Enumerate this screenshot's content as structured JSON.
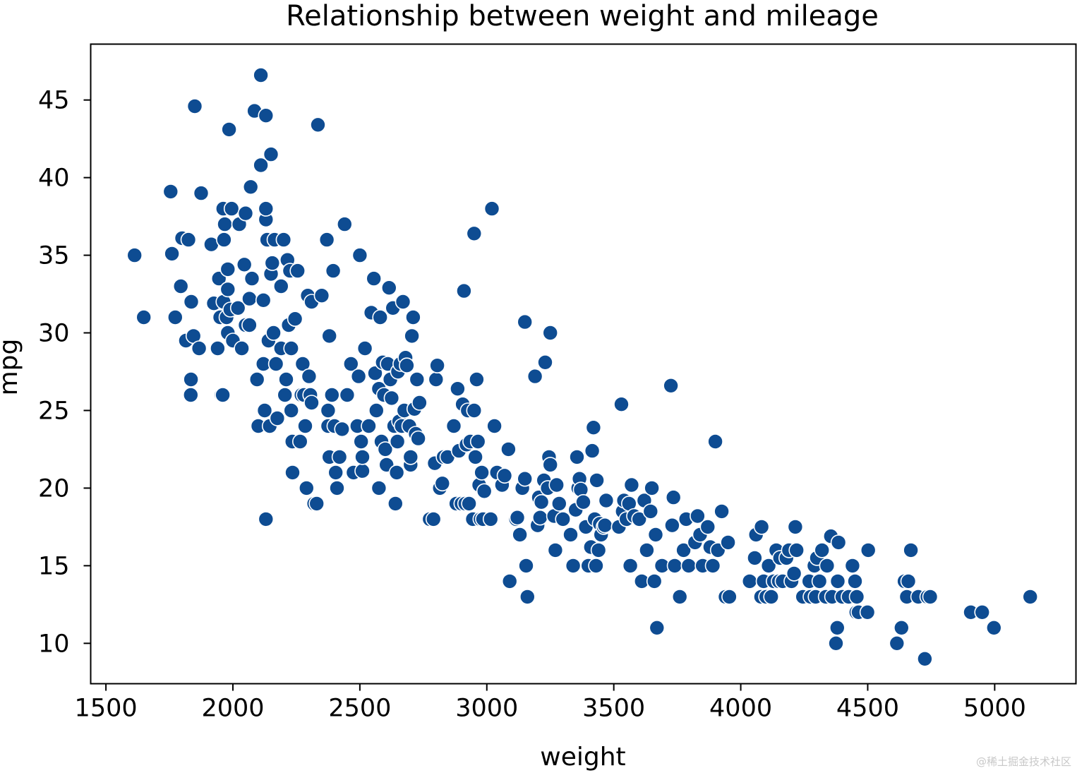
{
  "colors": {
    "marker_fill": "#0e4c92",
    "marker_edge": "#ffffff",
    "axis": "#000000",
    "background": "#ffffff"
  },
  "watermark": "@稀土掘金技术社区",
  "chart_data": {
    "type": "scatter",
    "title": "Relationship between weight and mileage",
    "xlabel": "weight",
    "ylabel": "mpg",
    "xlim": [
      1440,
      5320
    ],
    "ylim": [
      7.4,
      48.6
    ],
    "xticks": [
      1500,
      2000,
      2500,
      3000,
      3500,
      4000,
      4500,
      5000
    ],
    "yticks": [
      10,
      15,
      20,
      25,
      30,
      35,
      40,
      45
    ],
    "grid": false,
    "legend": "none",
    "points": [
      [
        1613,
        35
      ],
      [
        1649,
        31
      ],
      [
        1755,
        39.1
      ],
      [
        1760,
        35.1
      ],
      [
        1773,
        31
      ],
      [
        1795,
        33
      ],
      [
        1800,
        36.1
      ],
      [
        1815,
        29.5
      ],
      [
        1825,
        36
      ],
      [
        1834,
        26
      ],
      [
        1835,
        27
      ],
      [
        1836,
        32
      ],
      [
        1845,
        29.8
      ],
      [
        1850,
        44.6
      ],
      [
        1867,
        29
      ],
      [
        1875,
        39
      ],
      [
        1915,
        35.7
      ],
      [
        1925,
        31.9
      ],
      [
        1940,
        29
      ],
      [
        1945,
        33.5
      ],
      [
        1950,
        31
      ],
      [
        1955,
        26
      ],
      [
        1960,
        26
      ],
      [
        1962,
        38
      ],
      [
        1963,
        32
      ],
      [
        1965,
        36
      ],
      [
        1968,
        37
      ],
      [
        1975,
        31
      ],
      [
        1980,
        30
      ],
      [
        1980,
        34.1
      ],
      [
        1980,
        32.8
      ],
      [
        1985,
        43.1
      ],
      [
        1990,
        31.5
      ],
      [
        1995,
        38
      ],
      [
        2000,
        29.5
      ],
      [
        2020,
        31.6
      ],
      [
        2025,
        37
      ],
      [
        2035,
        29
      ],
      [
        2045,
        34.4
      ],
      [
        2050,
        30.5
      ],
      [
        2050,
        37.7
      ],
      [
        2065,
        32.2
      ],
      [
        2065,
        30.5
      ],
      [
        2070,
        39.4
      ],
      [
        2075,
        33.5
      ],
      [
        2085,
        44.3
      ],
      [
        2095,
        27
      ],
      [
        2100,
        24
      ],
      [
        2110,
        40.8
      ],
      [
        2110,
        46.6
      ],
      [
        2120,
        32.1
      ],
      [
        2120,
        28
      ],
      [
        2125,
        25
      ],
      [
        2130,
        18
      ],
      [
        2130,
        37.3
      ],
      [
        2130,
        38
      ],
      [
        2130,
        44
      ],
      [
        2135,
        36
      ],
      [
        2140,
        29.5
      ],
      [
        2145,
        24
      ],
      [
        2150,
        33.8
      ],
      [
        2150,
        41.5
      ],
      [
        2155,
        34.5
      ],
      [
        2160,
        30
      ],
      [
        2164,
        36
      ],
      [
        2170,
        28
      ],
      [
        2175,
        24.5
      ],
      [
        2190,
        29
      ],
      [
        2190,
        33
      ],
      [
        2200,
        36
      ],
      [
        2205,
        26
      ],
      [
        2210,
        27
      ],
      [
        2215,
        34.7
      ],
      [
        2220,
        30.5
      ],
      [
        2225,
        34
      ],
      [
        2230,
        29
      ],
      [
        2230,
        25
      ],
      [
        2234,
        23
      ],
      [
        2235,
        21
      ],
      [
        2245,
        30.9
      ],
      [
        2255,
        34
      ],
      [
        2265,
        23
      ],
      [
        2270,
        26
      ],
      [
        2275,
        28
      ],
      [
        2280,
        26
      ],
      [
        2285,
        24
      ],
      [
        2290,
        20
      ],
      [
        2295,
        32.4
      ],
      [
        2300,
        27.2
      ],
      [
        2305,
        26
      ],
      [
        2310,
        25.5
      ],
      [
        2310,
        32
      ],
      [
        2320,
        19
      ],
      [
        2330,
        19
      ],
      [
        2335,
        43.4
      ],
      [
        2350,
        32.4
      ],
      [
        2370,
        36
      ],
      [
        2375,
        24
      ],
      [
        2375,
        25
      ],
      [
        2380,
        22
      ],
      [
        2380,
        29.8
      ],
      [
        2390,
        26
      ],
      [
        2395,
        34
      ],
      [
        2400,
        24
      ],
      [
        2405,
        21
      ],
      [
        2410,
        20
      ],
      [
        2420,
        22
      ],
      [
        2430,
        23.8
      ],
      [
        2440,
        37
      ],
      [
        2450,
        26
      ],
      [
        2465,
        28
      ],
      [
        2475,
        21
      ],
      [
        2490,
        24
      ],
      [
        2495,
        27.2
      ],
      [
        2500,
        35
      ],
      [
        2505,
        23
      ],
      [
        2510,
        21.1
      ],
      [
        2510,
        22
      ],
      [
        2520,
        29
      ],
      [
        2535,
        24
      ],
      [
        2545,
        31.3
      ],
      [
        2555,
        33.5
      ],
      [
        2560,
        27.4
      ],
      [
        2565,
        25
      ],
      [
        2575,
        20
      ],
      [
        2575,
        26.4
      ],
      [
        2580,
        31
      ],
      [
        2585,
        23
      ],
      [
        2590,
        28.1
      ],
      [
        2595,
        26
      ],
      [
        2600,
        22.5
      ],
      [
        2605,
        21.5
      ],
      [
        2610,
        28
      ],
      [
        2615,
        32.9
      ],
      [
        2620,
        27
      ],
      [
        2625,
        25.8
      ],
      [
        2630,
        31.6
      ],
      [
        2635,
        24
      ],
      [
        2640,
        19
      ],
      [
        2645,
        21
      ],
      [
        2648,
        23
      ],
      [
        2650,
        27.5
      ],
      [
        2655,
        24.3
      ],
      [
        2660,
        28
      ],
      [
        2665,
        24
      ],
      [
        2670,
        32
      ],
      [
        2675,
        25
      ],
      [
        2680,
        28.4
      ],
      [
        2685,
        27.9
      ],
      [
        2695,
        24
      ],
      [
        2700,
        21.5
      ],
      [
        2700,
        22
      ],
      [
        2705,
        29.8
      ],
      [
        2710,
        31
      ],
      [
        2715,
        25.1
      ],
      [
        2720,
        23.5
      ],
      [
        2725,
        27
      ],
      [
        2730,
        23.2
      ],
      [
        2735,
        25.5
      ],
      [
        2775,
        18
      ],
      [
        2790,
        18
      ],
      [
        2795,
        21.6
      ],
      [
        2800,
        27
      ],
      [
        2805,
        27.9
      ],
      [
        2815,
        20
      ],
      [
        2825,
        20.3
      ],
      [
        2830,
        22
      ],
      [
        2845,
        22
      ],
      [
        2870,
        24
      ],
      [
        2880,
        19
      ],
      [
        2885,
        26.4
      ],
      [
        2890,
        22.4
      ],
      [
        2900,
        19
      ],
      [
        2905,
        25.4
      ],
      [
        2910,
        32.7
      ],
      [
        2915,
        19
      ],
      [
        2920,
        22.8
      ],
      [
        2925,
        25
      ],
      [
        2930,
        19
      ],
      [
        2935,
        23
      ],
      [
        2945,
        18
      ],
      [
        2950,
        36.4
      ],
      [
        2950,
        25
      ],
      [
        2955,
        22
      ],
      [
        2960,
        27
      ],
      [
        2965,
        23
      ],
      [
        2970,
        20.2
      ],
      [
        2975,
        18
      ],
      [
        2980,
        21
      ],
      [
        2985,
        18
      ],
      [
        2990,
        19.8
      ],
      [
        3015,
        18
      ],
      [
        3020,
        38
      ],
      [
        3030,
        24
      ],
      [
        3040,
        21
      ],
      [
        3060,
        20.2
      ],
      [
        3070,
        20.8
      ],
      [
        3085,
        22.5
      ],
      [
        3090,
        14
      ],
      [
        3115,
        18
      ],
      [
        3120,
        18.1
      ],
      [
        3130,
        17
      ],
      [
        3140,
        20
      ],
      [
        3150,
        20.6
      ],
      [
        3150,
        30.7
      ],
      [
        3155,
        15
      ],
      [
        3160,
        13
      ],
      [
        3190,
        27.2
      ],
      [
        3200,
        17.6
      ],
      [
        3205,
        19.4
      ],
      [
        3210,
        18.1
      ],
      [
        3215,
        19.1
      ],
      [
        3225,
        20.5
      ],
      [
        3230,
        28.1
      ],
      [
        3240,
        20
      ],
      [
        3245,
        22
      ],
      [
        3250,
        21.5
      ],
      [
        3250,
        30
      ],
      [
        3265,
        18.2
      ],
      [
        3270,
        16
      ],
      [
        3275,
        20.2
      ],
      [
        3285,
        19
      ],
      [
        3300,
        18
      ],
      [
        3330,
        17
      ],
      [
        3340,
        15
      ],
      [
        3350,
        18.6
      ],
      [
        3355,
        22
      ],
      [
        3360,
        20
      ],
      [
        3365,
        20.6
      ],
      [
        3370,
        19.9
      ],
      [
        3380,
        19.1
      ],
      [
        3390,
        17.5
      ],
      [
        3400,
        15
      ],
      [
        3410,
        16.2
      ],
      [
        3415,
        22.4
      ],
      [
        3420,
        23.9
      ],
      [
        3425,
        18
      ],
      [
        3430,
        15
      ],
      [
        3433,
        20.5
      ],
      [
        3440,
        16
      ],
      [
        3445,
        17.7
      ],
      [
        3450,
        17
      ],
      [
        3460,
        17.5
      ],
      [
        3465,
        17.6
      ],
      [
        3470,
        19.2
      ],
      [
        3520,
        17.5
      ],
      [
        3530,
        25.4
      ],
      [
        3535,
        18.5
      ],
      [
        3540,
        19.2
      ],
      [
        3550,
        18
      ],
      [
        3560,
        19
      ],
      [
        3565,
        15
      ],
      [
        3570,
        20.2
      ],
      [
        3580,
        18.2
      ],
      [
        3600,
        18
      ],
      [
        3610,
        14
      ],
      [
        3620,
        19.2
      ],
      [
        3630,
        16
      ],
      [
        3645,
        18.5
      ],
      [
        3650,
        20
      ],
      [
        3660,
        14
      ],
      [
        3665,
        17
      ],
      [
        3670,
        11
      ],
      [
        3690,
        15
      ],
      [
        3725,
        26.6
      ],
      [
        3730,
        17.6
      ],
      [
        3735,
        19.4
      ],
      [
        3740,
        15
      ],
      [
        3760,
        13
      ],
      [
        3775,
        16
      ],
      [
        3785,
        18
      ],
      [
        3795,
        15
      ],
      [
        3820,
        16.5
      ],
      [
        3830,
        18.2
      ],
      [
        3840,
        17
      ],
      [
        3850,
        15
      ],
      [
        3870,
        17.5
      ],
      [
        3880,
        16.2
      ],
      [
        3890,
        15
      ],
      [
        3900,
        23
      ],
      [
        3910,
        16
      ],
      [
        3925,
        18.5
      ],
      [
        3940,
        13
      ],
      [
        3950,
        16.5
      ],
      [
        3955,
        13
      ],
      [
        4035,
        14
      ],
      [
        4055,
        15.5
      ],
      [
        4060,
        17
      ],
      [
        4080,
        13
      ],
      [
        4082,
        17.5
      ],
      [
        4090,
        14
      ],
      [
        4100,
        13
      ],
      [
        4110,
        15
      ],
      [
        4120,
        13
      ],
      [
        4130,
        14
      ],
      [
        4140,
        16
      ],
      [
        4150,
        14
      ],
      [
        4155,
        15.5
      ],
      [
        4165,
        14
      ],
      [
        4180,
        15.5
      ],
      [
        4190,
        16
      ],
      [
        4200,
        14
      ],
      [
        4210,
        14.5
      ],
      [
        4215,
        17.5
      ],
      [
        4220,
        16
      ],
      [
        4245,
        13
      ],
      [
        4270,
        14
      ],
      [
        4275,
        13
      ],
      [
        4290,
        15
      ],
      [
        4295,
        13
      ],
      [
        4300,
        15.5
      ],
      [
        4310,
        14
      ],
      [
        4320,
        16
      ],
      [
        4335,
        13
      ],
      [
        4340,
        15
      ],
      [
        4355,
        16.9
      ],
      [
        4360,
        13
      ],
      [
        4375,
        10
      ],
      [
        4380,
        11
      ],
      [
        4382,
        14
      ],
      [
        4385,
        16.5
      ],
      [
        4400,
        13
      ],
      [
        4425,
        13
      ],
      [
        4440,
        15
      ],
      [
        4450,
        14
      ],
      [
        4455,
        12
      ],
      [
        4457,
        13
      ],
      [
        4464,
        12
      ],
      [
        4499,
        12
      ],
      [
        4502,
        16
      ],
      [
        4633,
        11
      ],
      [
        4615,
        10
      ],
      [
        4645,
        14
      ],
      [
        4654,
        13
      ],
      [
        4660,
        14
      ],
      [
        4670,
        16
      ],
      [
        4699,
        13
      ],
      [
        4725,
        9
      ],
      [
        4735,
        13
      ],
      [
        4746,
        13
      ],
      [
        4906,
        12
      ],
      [
        4951,
        12
      ],
      [
        4997,
        11
      ],
      [
        5140,
        13
      ]
    ]
  }
}
